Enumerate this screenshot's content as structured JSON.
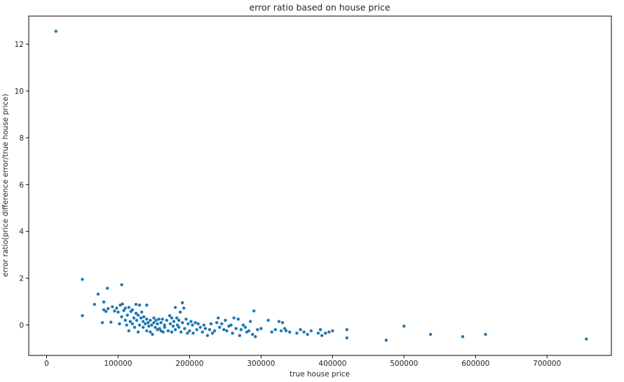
{
  "chart_data": {
    "type": "scatter",
    "title": "error ratio based on house price",
    "xlabel": "true house price",
    "ylabel": "error ratio(price difference error/true house price)",
    "xlim": [
      -25000,
      790000
    ],
    "ylim": [
      -1.3,
      13.2
    ],
    "xticks": [
      0,
      100000,
      200000,
      300000,
      400000,
      500000,
      600000,
      700000
    ],
    "yticks": [
      0,
      2,
      4,
      6,
      8,
      10,
      12
    ],
    "grid": false,
    "color": "#1f77b4",
    "series": [
      {
        "points": [
          [
            13000,
            12.55
          ],
          [
            50000,
            1.95
          ],
          [
            50000,
            0.4
          ],
          [
            72000,
            1.32
          ],
          [
            85000,
            1.57
          ],
          [
            105000,
            1.72
          ],
          [
            67000,
            0.88
          ],
          [
            78000,
            0.1
          ],
          [
            80000,
            0.65
          ],
          [
            80000,
            0.98
          ],
          [
            83000,
            0.58
          ],
          [
            86000,
            0.7
          ],
          [
            90000,
            0.12
          ],
          [
            92000,
            0.78
          ],
          [
            95000,
            0.6
          ],
          [
            98000,
            0.72
          ],
          [
            100000,
            0.55
          ],
          [
            102000,
            0.05
          ],
          [
            103000,
            0.85
          ],
          [
            105000,
            0.35
          ],
          [
            106000,
            0.9
          ],
          [
            108000,
            0.62
          ],
          [
            110000,
            0.2
          ],
          [
            110000,
            0.72
          ],
          [
            112000,
            0.0
          ],
          [
            113000,
            0.42
          ],
          [
            115000,
            -0.25
          ],
          [
            115000,
            0.75
          ],
          [
            117000,
            0.15
          ],
          [
            118000,
            0.58
          ],
          [
            120000,
            0.05
          ],
          [
            120000,
            0.65
          ],
          [
            122000,
            0.3
          ],
          [
            123000,
            -0.1
          ],
          [
            125000,
            0.5
          ],
          [
            125000,
            0.88
          ],
          [
            126000,
            0.2
          ],
          [
            128000,
            -0.3
          ],
          [
            128000,
            0.42
          ],
          [
            130000,
            0.0
          ],
          [
            130000,
            0.85
          ],
          [
            132000,
            0.3
          ],
          [
            133000,
            0.55
          ],
          [
            135000,
            -0.1
          ],
          [
            135000,
            0.15
          ],
          [
            136000,
            0.35
          ],
          [
            138000,
            0.05
          ],
          [
            140000,
            -0.25
          ],
          [
            140000,
            0.25
          ],
          [
            140000,
            0.85
          ],
          [
            142000,
            0.1
          ],
          [
            143000,
            -0.05
          ],
          [
            145000,
            0.2
          ],
          [
            145000,
            -0.3
          ],
          [
            147000,
            0.0
          ],
          [
            148000,
            -0.4
          ],
          [
            150000,
            0.1
          ],
          [
            150000,
            0.3
          ],
          [
            152000,
            -0.1
          ],
          [
            153000,
            0.2
          ],
          [
            155000,
            -0.2
          ],
          [
            155000,
            0.05
          ],
          [
            157000,
            0.25
          ],
          [
            158000,
            -0.15
          ],
          [
            160000,
            -0.25
          ],
          [
            160000,
            0.1
          ],
          [
            162000,
            0.25
          ],
          [
            163000,
            -0.3
          ],
          [
            165000,
            0.0
          ],
          [
            165000,
            -0.1
          ],
          [
            168000,
            0.2
          ],
          [
            170000,
            -0.25
          ],
          [
            172000,
            0.4
          ],
          [
            173000,
            0.05
          ],
          [
            175000,
            -0.3
          ],
          [
            175000,
            0.3
          ],
          [
            177000,
            -0.05
          ],
          [
            178000,
            0.15
          ],
          [
            180000,
            0.75
          ],
          [
            180000,
            -0.2
          ],
          [
            182000,
            0.3
          ],
          [
            183000,
            0.0
          ],
          [
            185000,
            -0.1
          ],
          [
            185000,
            0.2
          ],
          [
            187000,
            0.55
          ],
          [
            188000,
            -0.3
          ],
          [
            190000,
            0.95
          ],
          [
            190000,
            0.1
          ],
          [
            192000,
            0.72
          ],
          [
            193000,
            -0.15
          ],
          [
            195000,
            0.25
          ],
          [
            197000,
            -0.35
          ],
          [
            198000,
            0.05
          ],
          [
            200000,
            -0.25
          ],
          [
            202000,
            0.15
          ],
          [
            204000,
            0.0
          ],
          [
            205000,
            -0.35
          ],
          [
            208000,
            0.1
          ],
          [
            210000,
            -0.2
          ],
          [
            212000,
            0.05
          ],
          [
            215000,
            -0.1
          ],
          [
            218000,
            -0.3
          ],
          [
            220000,
            0.0
          ],
          [
            222000,
            -0.15
          ],
          [
            225000,
            -0.45
          ],
          [
            228000,
            -0.2
          ],
          [
            230000,
            0.05
          ],
          [
            232000,
            -0.35
          ],
          [
            235000,
            -0.25
          ],
          [
            238000,
            0.1
          ],
          [
            240000,
            0.3
          ],
          [
            242000,
            -0.1
          ],
          [
            245000,
            0.05
          ],
          [
            248000,
            -0.2
          ],
          [
            250000,
            0.2
          ],
          [
            252000,
            -0.25
          ],
          [
            255000,
            -0.05
          ],
          [
            258000,
            0.0
          ],
          [
            260000,
            -0.35
          ],
          [
            262000,
            0.3
          ],
          [
            265000,
            -0.15
          ],
          [
            268000,
            0.25
          ],
          [
            270000,
            -0.45
          ],
          [
            272000,
            -0.2
          ],
          [
            275000,
            0.0
          ],
          [
            278000,
            -0.1
          ],
          [
            280000,
            -0.3
          ],
          [
            283000,
            -0.25
          ],
          [
            285000,
            0.15
          ],
          [
            288000,
            -0.4
          ],
          [
            290000,
            0.6
          ],
          [
            292000,
            -0.5
          ],
          [
            295000,
            -0.2
          ],
          [
            300000,
            -0.15
          ],
          [
            310000,
            0.2
          ],
          [
            315000,
            -0.3
          ],
          [
            320000,
            -0.2
          ],
          [
            325000,
            0.15
          ],
          [
            328000,
            -0.25
          ],
          [
            330000,
            0.1
          ],
          [
            333000,
            -0.15
          ],
          [
            335000,
            -0.25
          ],
          [
            340000,
            -0.3
          ],
          [
            350000,
            -0.35
          ],
          [
            355000,
            -0.2
          ],
          [
            360000,
            -0.3
          ],
          [
            365000,
            -0.4
          ],
          [
            370000,
            -0.25
          ],
          [
            380000,
            -0.35
          ],
          [
            383000,
            -0.2
          ],
          [
            385000,
            -0.45
          ],
          [
            390000,
            -0.35
          ],
          [
            395000,
            -0.3
          ],
          [
            400000,
            -0.25
          ],
          [
            420000,
            -0.2
          ],
          [
            420000,
            -0.55
          ],
          [
            475000,
            -0.65
          ],
          [
            500000,
            -0.05
          ],
          [
            537000,
            -0.4
          ],
          [
            582000,
            -0.5
          ],
          [
            614000,
            -0.4
          ],
          [
            755000,
            -0.6
          ]
        ]
      }
    ]
  }
}
